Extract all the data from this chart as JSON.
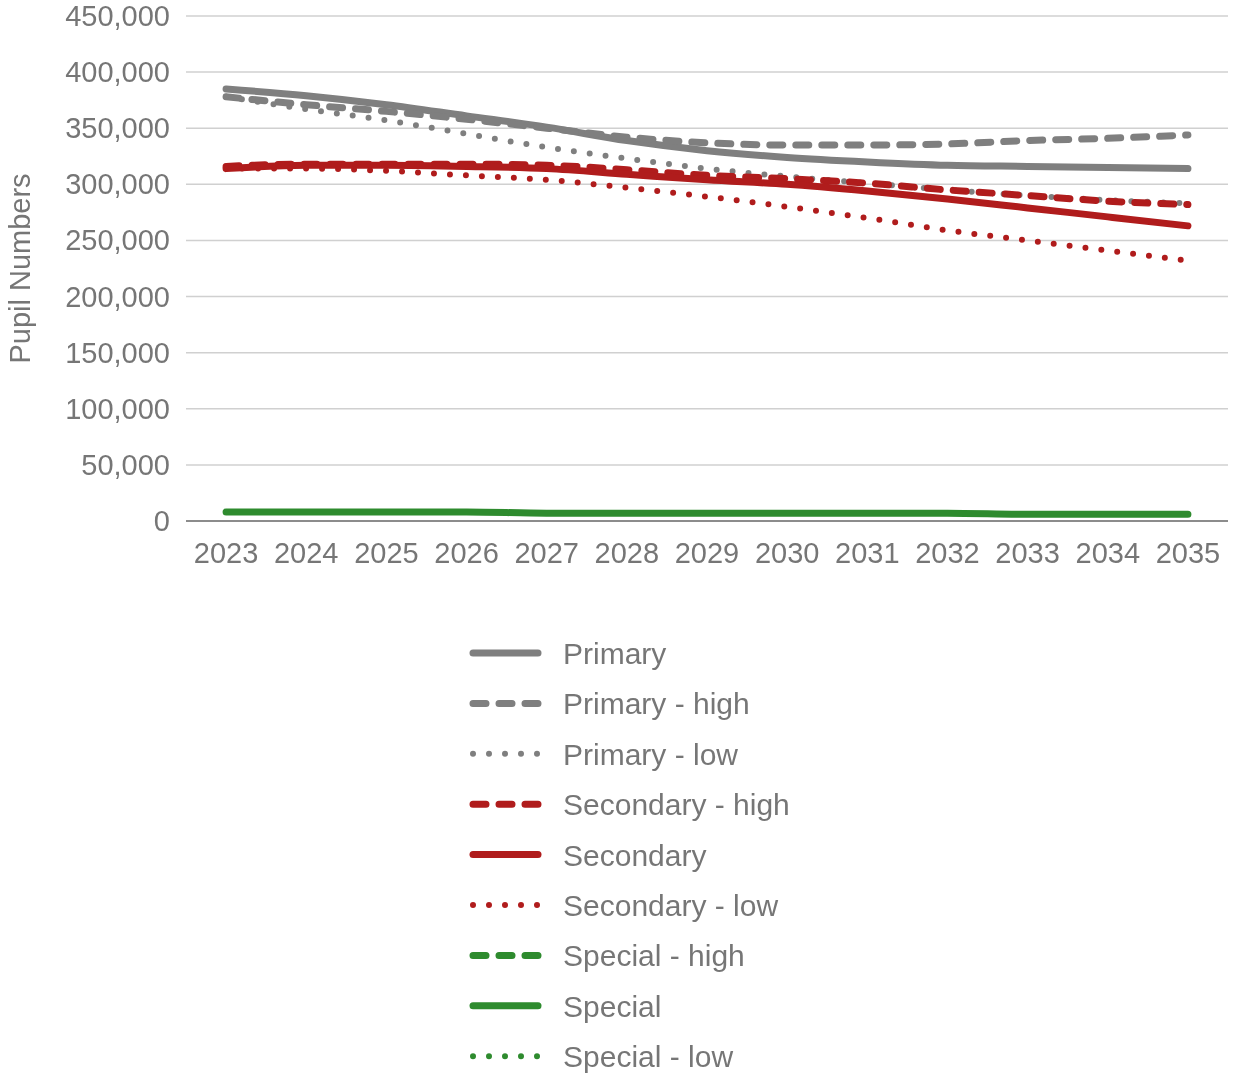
{
  "chart_data": {
    "type": "line",
    "ylabel": "Pupil Numbers",
    "categories": [
      "2023",
      "2024",
      "2025",
      "2026",
      "2027",
      "2028",
      "2029",
      "2030",
      "2031",
      "2032",
      "2033",
      "2034",
      "2035"
    ],
    "ylim": [
      0,
      450000
    ],
    "yticks": [
      0,
      {
        "value": 50000,
        "label": "50,000"
      },
      {
        "value": 100000,
        "label": "100,000"
      },
      {
        "value": 150000,
        "label": "150,000"
      },
      {
        "value": 200000,
        "label": "200,000"
      },
      {
        "value": 250000,
        "label": "250,000"
      },
      {
        "value": 300000,
        "label": "300,000"
      },
      {
        "value": 350000,
        "label": "350,000"
      },
      {
        "value": 400000,
        "label": "400,000"
      },
      {
        "value": 450000,
        "label": "450,000"
      }
    ],
    "grid": "y",
    "legend": "bottom",
    "series": [
      {
        "name": "Primary",
        "color": "#7f7f7f",
        "line_style": "solid",
        "values": [
          385000,
          379000,
          371000,
          361000,
          351000,
          339000,
          330000,
          324000,
          320000,
          317000,
          316000,
          315000,
          314000
        ]
      },
      {
        "name": "Primary - high",
        "color": "#7f7f7f",
        "line_style": "dashed",
        "values": [
          378000,
          371000,
          365000,
          358000,
          350000,
          342000,
          337000,
          335000,
          335000,
          336000,
          339000,
          341000,
          344000
        ]
      },
      {
        "name": "Primary - low",
        "color": "#7f7f7f",
        "line_style": "dotted",
        "values": [
          378000,
          367000,
          357000,
          345000,
          333000,
          323000,
          314000,
          307000,
          301000,
          295000,
          290000,
          286000,
          283000
        ]
      },
      {
        "name": "Secondary - high",
        "color": "#b01c1c",
        "line_style": "dashed",
        "values": [
          316000,
          318000,
          318000,
          318000,
          317000,
          313000,
          308000,
          305000,
          301000,
          295000,
          290000,
          285000,
          282000
        ]
      },
      {
        "name": "Secondary",
        "color": "#b01c1c",
        "line_style": "solid",
        "values": [
          314000,
          317000,
          317000,
          316000,
          314000,
          309000,
          304000,
          300000,
          294000,
          287000,
          279000,
          271000,
          263000
        ]
      },
      {
        "name": "Secondary - low",
        "color": "#b01c1c",
        "line_style": "dotted",
        "values": [
          314000,
          314000,
          312000,
          308000,
          304000,
          297000,
          289000,
          280000,
          270000,
          259000,
          250000,
          241000,
          232000
        ]
      },
      {
        "name": "Special - high",
        "color": "#2e8b2e",
        "line_style": "dashed",
        "values": [
          null,
          null,
          null,
          null,
          null,
          null,
          null,
          null,
          null,
          null,
          null,
          null,
          null
        ]
      },
      {
        "name": "Special",
        "color": "#2e8b2e",
        "line_style": "solid",
        "values": [
          8000,
          8000,
          8000,
          8000,
          7000,
          7000,
          7000,
          7000,
          7000,
          7000,
          6000,
          6000,
          6000
        ]
      },
      {
        "name": "Special - low",
        "color": "#2e8b2e",
        "line_style": "dotted",
        "values": [
          null,
          null,
          null,
          null,
          null,
          null,
          null,
          null,
          null,
          null,
          null,
          null,
          null
        ]
      }
    ]
  }
}
